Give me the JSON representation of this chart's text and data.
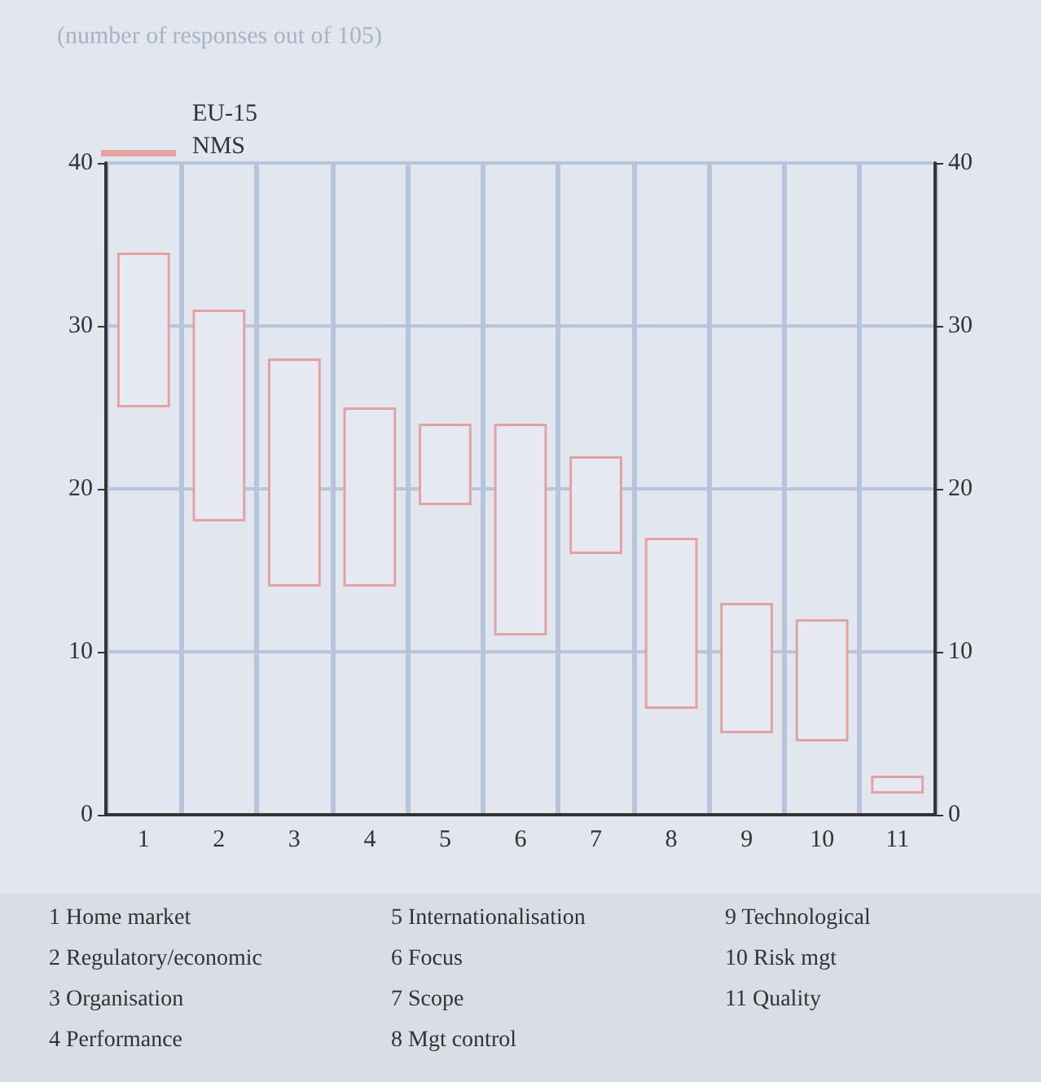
{
  "chart_data": {
    "type": "bar",
    "title": "(number of responses out of 105)",
    "categories": [
      "1",
      "2",
      "3",
      "4",
      "5",
      "6",
      "7",
      "8",
      "9",
      "10",
      "11"
    ],
    "base": [
      25,
      18,
      14,
      14,
      19,
      11,
      16,
      6.5,
      5,
      4.5,
      1.3
    ],
    "values": [
      9.5,
      13,
      14,
      11,
      5,
      13,
      6,
      10.5,
      8,
      7.5,
      1.1
    ],
    "color": "#e3a3a3",
    "ylim": [
      0,
      40
    ],
    "yticks": [
      0,
      10,
      20,
      30,
      40
    ],
    "y2lim": [
      0,
      40
    ],
    "y2ticks": [
      0,
      10,
      20,
      30,
      40
    ],
    "grid": true,
    "annotations": [
      "EU-15",
      "NMS",
      "1  Home market",
      "2  Regulatory/economic",
      "3  Organisation",
      "4  Performance",
      "5  Internationalisation",
      "6  Focus",
      "7  Scope",
      "8  Mgt control",
      "9  Technological",
      "10  Risk mgt",
      "11  Quality"
    ]
  }
}
